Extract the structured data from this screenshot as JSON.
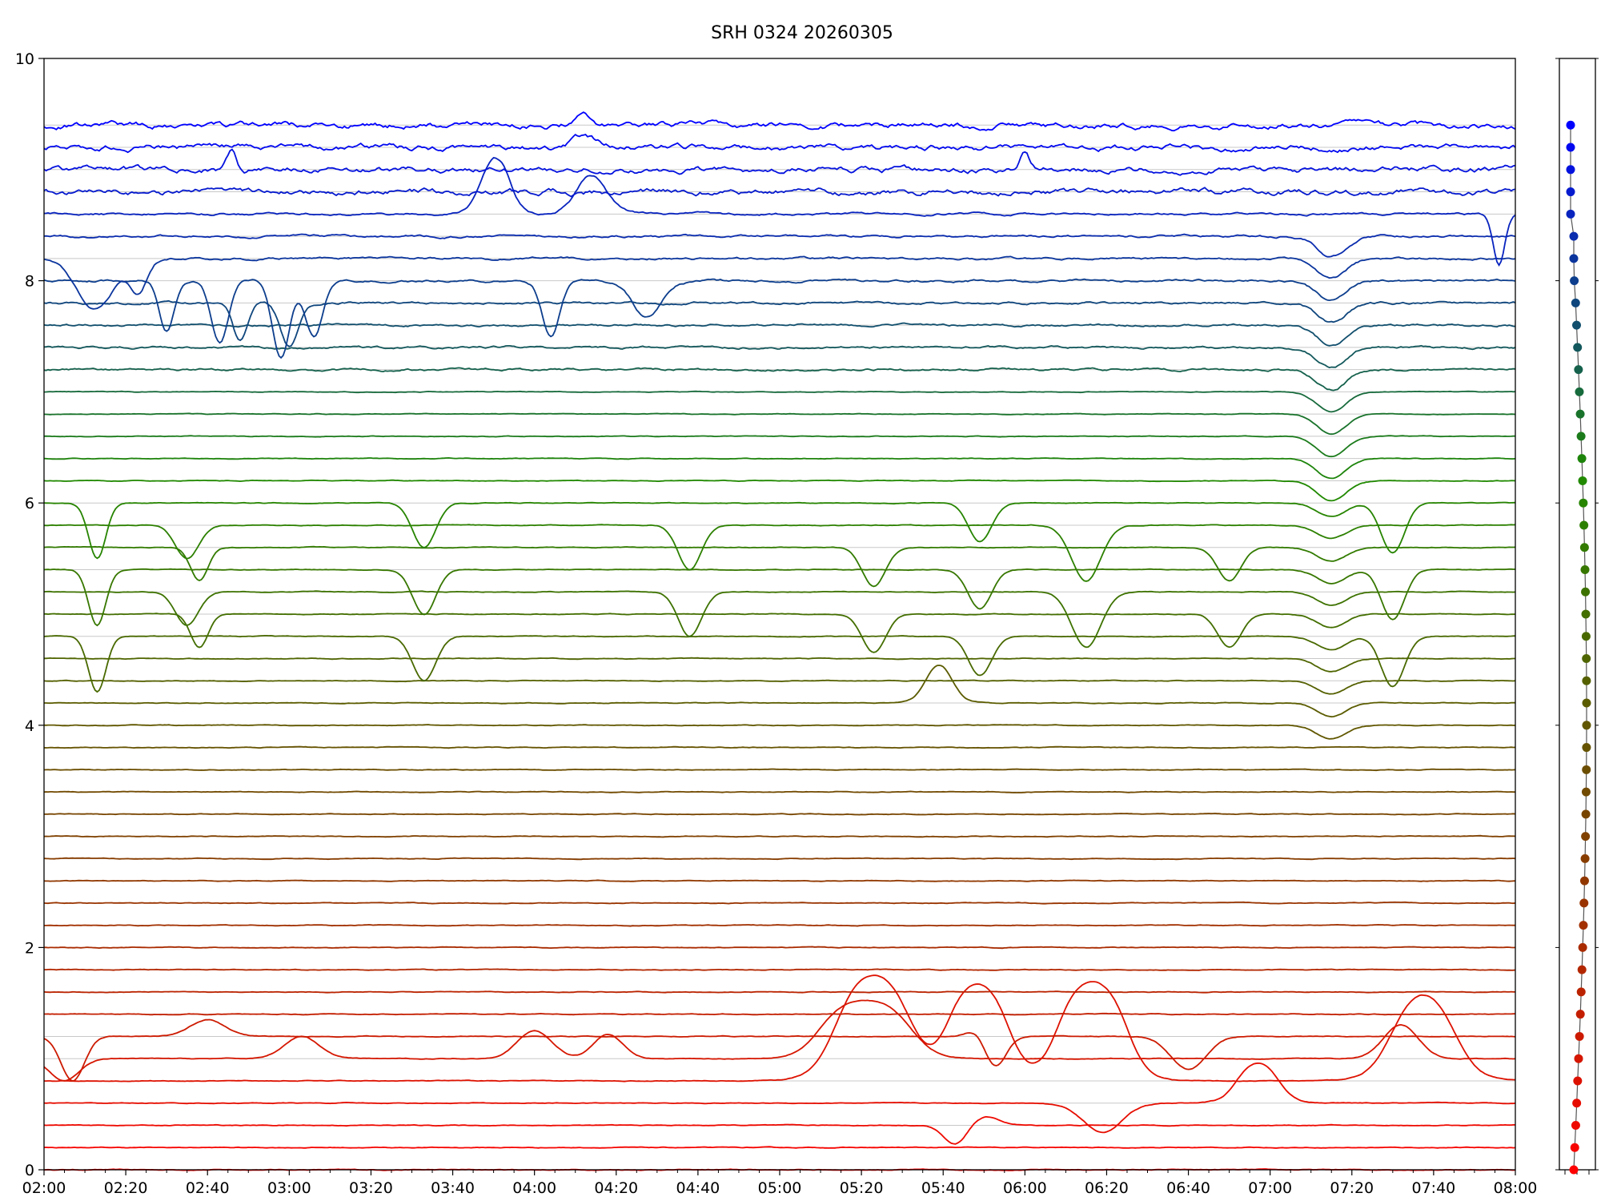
{
  "chart_data": {
    "type": "line",
    "title": "SRH 0324 20260305",
    "xlabel": "",
    "ylabel": "",
    "x_ticks": [
      "02:00",
      "02:20",
      "02:40",
      "03:00",
      "03:20",
      "03:40",
      "04:00",
      "04:20",
      "04:40",
      "05:00",
      "05:20",
      "05:40",
      "06:00",
      "06:20",
      "06:40",
      "07:00",
      "07:20",
      "07:40",
      "08:00"
    ],
    "x_range_minutes": [
      120,
      480
    ],
    "y_ticks": [
      "0",
      "2",
      "4",
      "6",
      "8",
      "10"
    ],
    "ylim": [
      0,
      10
    ],
    "grid": "horizontal lines at each channel baseline",
    "legend": "none",
    "color_gradient": [
      "#ff0000",
      "#7a4400",
      "#1e8a00",
      "#0000ff"
    ],
    "channel_count": 48,
    "baseline_spacing": 0.2,
    "series_summary": "48 frequency-channel traces stacked by baseline offset (0.0 at bottom to 9.4 at top); red at the low channels, grading through brown and green to blue at the top",
    "events": [
      {
        "time": "02:10-02:30",
        "channels": "upper blue",
        "description": "deep irregular dips to ~7.5"
      },
      {
        "time": "03:43-04:20",
        "channels": "upper blue",
        "description": "rises to ~9.5 and dips to ~7.8"
      },
      {
        "time": "05:40",
        "channels": "brown",
        "description": "single peak to ~4.75"
      },
      {
        "time": "05:15-06:25",
        "channels": "low red",
        "description": "broad peaks reaching ~2.0"
      },
      {
        "time": "06:18",
        "channels": "low red",
        "description": "dip to ~0.28"
      },
      {
        "time": "07:00",
        "channels": "low red",
        "description": "peak to ~1.05"
      },
      {
        "time": "07:15",
        "channels": "mid to upper",
        "description": "common dip across many channels"
      },
      {
        "time": "07:45",
        "channels": "low red",
        "description": "broad peak to ~1.9"
      }
    ],
    "side_panel": {
      "type": "scatter",
      "description": "per-channel marker column (one dot per channel, colored by channel)",
      "points": 48
    }
  }
}
